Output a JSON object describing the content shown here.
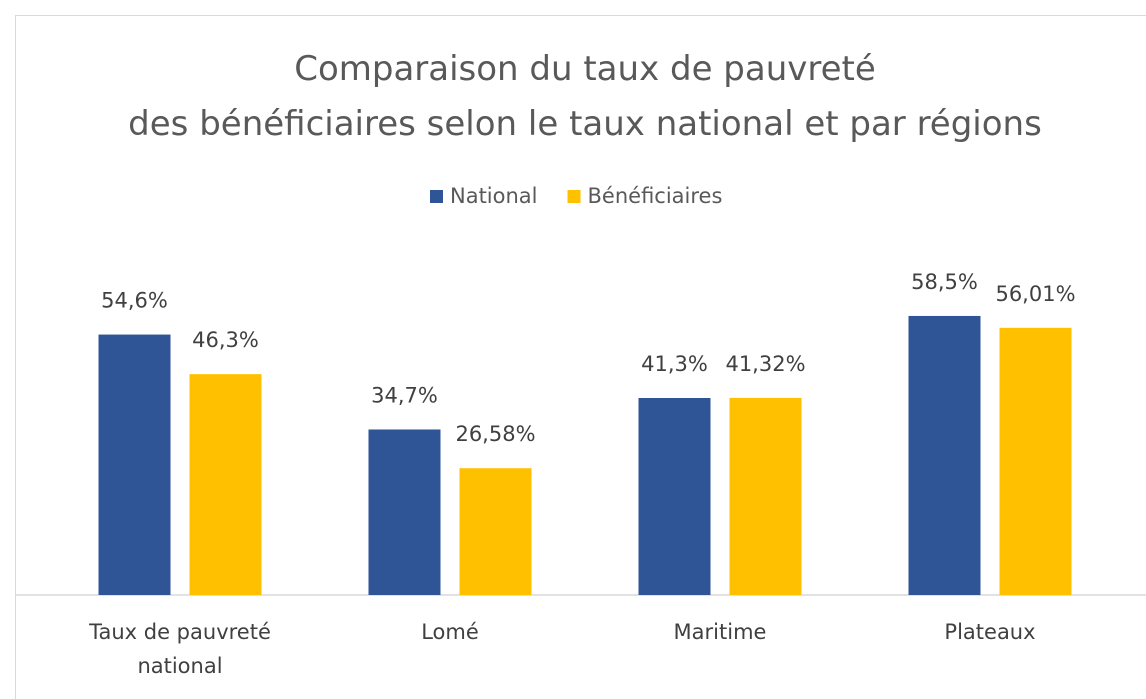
{
  "chart_data": {
    "type": "bar",
    "title": "Comparaison du taux de pauvreté des bénéficiaires selon le taux national et par régions",
    "categories": [
      "Taux de pauvreté national",
      "Lomé",
      "Maritime",
      "Plateaux"
    ],
    "series": [
      {
        "name": "National",
        "color": "#2f5597",
        "values": [
          54.6,
          34.7,
          41.3,
          58.5
        ],
        "value_labels": [
          "54,6%",
          "34,7%",
          "41,3%",
          "58,5%"
        ]
      },
      {
        "name": "Bénéficiaires",
        "color": "#ffc000",
        "values": [
          46.3,
          26.58,
          41.32,
          56.01
        ],
        "value_labels": [
          "46,3%",
          "26,58%",
          "41,32%",
          "56,01%"
        ]
      }
    ],
    "legend": "top"
  }
}
